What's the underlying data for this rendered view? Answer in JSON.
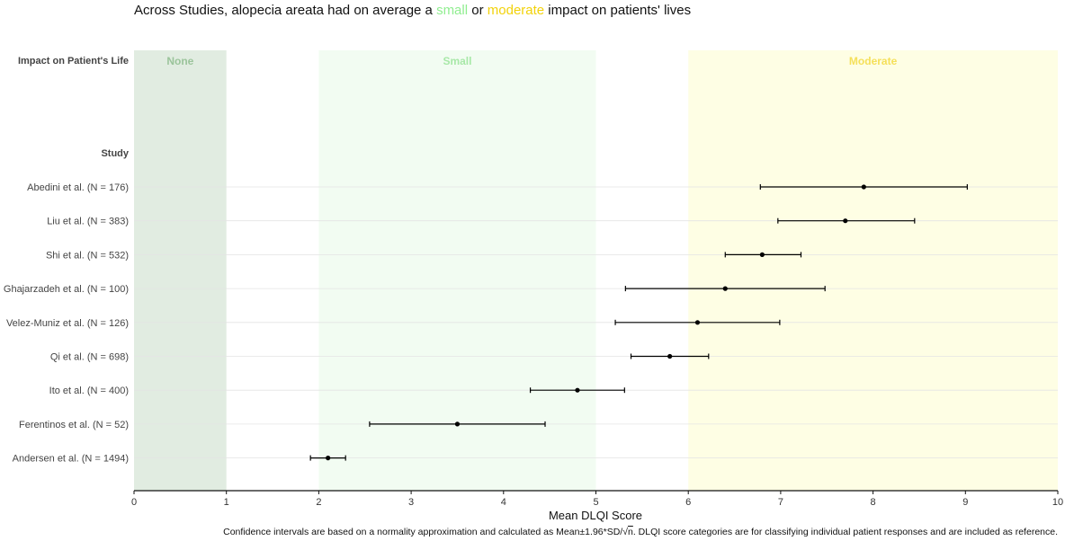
{
  "title": {
    "part1": "Across Studies, alopecia areata had on average a ",
    "small_word": "small",
    "part2": " or ",
    "moderate_word": "moderate",
    "part3": " impact on patients' lives"
  },
  "colors": {
    "none_band": "#e1ece1",
    "small_band": "#f2fcf2",
    "moderate_band": "#fefee4",
    "none_label": "#9bc49b",
    "small_label": "#a8e8a8",
    "moderate_label": "#f5e05a",
    "title_small": "#90ee90",
    "title_moderate": "#f2d20a",
    "point": "#000000"
  },
  "row_headers": {
    "impact": "Impact on Patient's Life",
    "study": "Study"
  },
  "footnote": {
    "before": "Confidence intervals are based on a normality approximation and calculated as Mean±1.96*SD/",
    "radical": "√",
    "n": "n",
    "after": ". DLQI score categories are for classifying individual patient responses and are included as reference."
  },
  "chart_data": {
    "type": "forest",
    "xlabel": "Mean DLQI Score",
    "xlim": [
      0,
      10
    ],
    "xticks": [
      0,
      1,
      2,
      3,
      4,
      5,
      6,
      7,
      8,
      9,
      10
    ],
    "categories_bands": [
      {
        "label": "None",
        "from": 0,
        "to": 1
      },
      {
        "label": "Small",
        "from": 2,
        "to": 5
      },
      {
        "label": "Moderate",
        "from": 6,
        "to": 10
      }
    ],
    "studies": [
      {
        "label": "Abedini et al. (N = 176)",
        "mean": 7.9,
        "lower": 6.78,
        "upper": 9.02
      },
      {
        "label": "Liu et al. (N = 383)",
        "mean": 7.7,
        "lower": 6.97,
        "upper": 8.45
      },
      {
        "label": "Shi et al. (N = 532)",
        "mean": 6.8,
        "lower": 6.4,
        "upper": 7.22
      },
      {
        "label": "Ghajarzadeh et al. (N = 100)",
        "mean": 6.4,
        "lower": 5.32,
        "upper": 7.48
      },
      {
        "label": "Velez-Muniz et al. (N = 126)",
        "mean": 6.1,
        "lower": 5.21,
        "upper": 6.99
      },
      {
        "label": "Qi et al. (N = 698)",
        "mean": 5.8,
        "lower": 5.38,
        "upper": 6.22
      },
      {
        "label": "Ito et al. (N = 400)",
        "mean": 4.8,
        "lower": 4.29,
        "upper": 5.31
      },
      {
        "label": "Ferentinos et al. (N = 52)",
        "mean": 3.5,
        "lower": 2.55,
        "upper": 4.45
      },
      {
        "label": "Andersen et al. (N = 1494)",
        "mean": 2.1,
        "lower": 1.91,
        "upper": 2.29
      }
    ]
  }
}
